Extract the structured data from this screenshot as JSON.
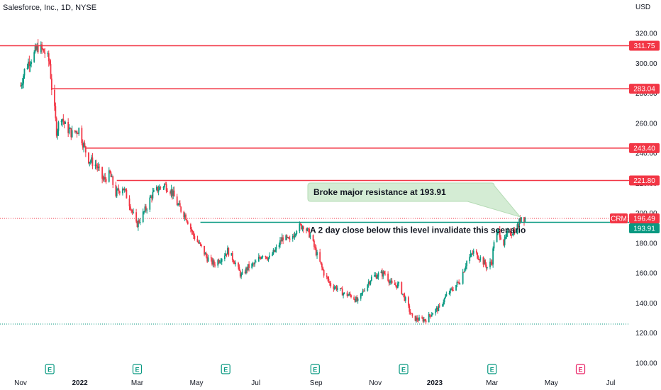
{
  "chart_data": {
    "type": "candlestick",
    "title": "Salesforce, Inc., 1D, NYSE",
    "currency": "USD",
    "symbol": "CRM",
    "last_price": 196.49,
    "ylim": [
      96,
      330
    ],
    "y_ticks": [
      100.0,
      120.0,
      140.0,
      160.0,
      180.0,
      200.0,
      220.0,
      240.0,
      260.0,
      280.0,
      300.0,
      320.0
    ],
    "x_ticks": [
      "Nov",
      "2022",
      "Mar",
      "May",
      "Jul",
      "Sep",
      "Nov",
      "2023",
      "Mar",
      "May",
      "Jul"
    ],
    "price_path": [
      [
        "2021-11-01",
        285
      ],
      [
        "2021-11-05",
        295
      ],
      [
        "2021-11-10",
        302
      ],
      [
        "2021-11-15",
        306
      ],
      [
        "2021-11-19",
        311
      ],
      [
        "2021-11-26",
        307
      ],
      [
        "2021-12-01",
        300
      ],
      [
        "2021-12-03",
        284
      ],
      [
        "2021-12-06",
        268
      ],
      [
        "2021-12-08",
        255
      ],
      [
        "2021-12-13",
        265
      ],
      [
        "2021-12-17",
        258
      ],
      [
        "2021-12-24",
        253
      ],
      [
        "2021-12-31",
        256
      ],
      [
        "2022-01-05",
        245
      ],
      [
        "2022-01-10",
        236
      ],
      [
        "2022-01-18",
        232
      ],
      [
        "2022-01-25",
        222
      ],
      [
        "2022-02-01",
        226
      ],
      [
        "2022-02-07",
        213
      ],
      [
        "2022-02-14",
        218
      ],
      [
        "2022-02-22",
        205
      ],
      [
        "2022-02-28",
        192
      ],
      [
        "2022-03-04",
        196
      ],
      [
        "2022-03-10",
        203
      ],
      [
        "2022-03-16",
        212
      ],
      [
        "2022-03-22",
        216
      ],
      [
        "2022-03-29",
        219
      ],
      [
        "2022-04-05",
        215
      ],
      [
        "2022-04-12",
        205
      ],
      [
        "2022-04-20",
        198
      ],
      [
        "2022-04-28",
        185
      ],
      [
        "2022-05-05",
        178
      ],
      [
        "2022-05-12",
        170
      ],
      [
        "2022-05-19",
        166
      ],
      [
        "2022-05-26",
        170
      ],
      [
        "2022-06-02",
        175
      ],
      [
        "2022-06-09",
        168
      ],
      [
        "2022-06-16",
        158
      ],
      [
        "2022-06-23",
        164
      ],
      [
        "2022-06-30",
        166
      ],
      [
        "2022-07-08",
        173
      ],
      [
        "2022-07-15",
        170
      ],
      [
        "2022-07-22",
        176
      ],
      [
        "2022-07-29",
        184
      ],
      [
        "2022-08-05",
        181
      ],
      [
        "2022-08-12",
        190
      ],
      [
        "2022-08-19",
        192
      ],
      [
        "2022-08-26",
        185
      ],
      [
        "2022-09-02",
        172
      ],
      [
        "2022-09-09",
        160
      ],
      [
        "2022-09-16",
        152
      ],
      [
        "2022-09-23",
        150
      ],
      [
        "2022-09-30",
        146
      ],
      [
        "2022-10-07",
        145
      ],
      [
        "2022-10-14",
        141
      ],
      [
        "2022-10-21",
        150
      ],
      [
        "2022-10-28",
        157
      ],
      [
        "2022-11-04",
        159
      ],
      [
        "2022-11-11",
        160
      ],
      [
        "2022-11-18",
        152
      ],
      [
        "2022-11-25",
        152
      ],
      [
        "2022-12-02",
        142
      ],
      [
        "2022-12-09",
        130
      ],
      [
        "2022-12-16",
        129
      ],
      [
        "2022-12-23",
        129
      ],
      [
        "2022-12-30",
        134
      ],
      [
        "2023-01-06",
        137
      ],
      [
        "2023-01-13",
        145
      ],
      [
        "2023-01-20",
        150
      ],
      [
        "2023-01-27",
        155
      ],
      [
        "2023-02-03",
        168
      ],
      [
        "2023-02-10",
        174
      ],
      [
        "2023-02-17",
        170
      ],
      [
        "2023-02-24",
        164
      ],
      [
        "2023-03-01",
        168
      ],
      [
        "2023-03-03",
        182
      ],
      [
        "2023-03-08",
        188
      ],
      [
        "2023-03-13",
        180
      ],
      [
        "2023-03-17",
        186
      ],
      [
        "2023-03-23",
        188
      ],
      [
        "2023-03-28",
        192
      ],
      [
        "2023-03-31",
        198
      ],
      [
        "2023-04-04",
        196.49
      ]
    ],
    "annotations": [
      {
        "text": "Broke major resistance at 193.91"
      },
      {
        "text": "A 2 day close below this level invalidate this scenario"
      }
    ],
    "horizontal_levels": [
      {
        "value": 311.75,
        "label": "311.75",
        "color": "#f23645",
        "from_date": "2021-10-01"
      },
      {
        "value": 283.04,
        "label": "283.04",
        "color": "#f23645",
        "from_date": "2021-12-03"
      },
      {
        "value": 243.4,
        "label": "243.40",
        "color": "#f23645",
        "from_date": "2022-01-07"
      },
      {
        "value": 221.8,
        "label": "221.80",
        "color": "#f23645",
        "from_date": "2022-02-08"
      },
      {
        "value": 193.91,
        "label": "193.91",
        "color": "#089981",
        "from_date": "2022-05-05"
      }
    ],
    "dotted_levels": [
      {
        "value": 196.49,
        "color": "#f23645",
        "from_date": "2021-10-01"
      },
      {
        "value": 126,
        "color": "#089981",
        "from_date": "2021-10-01"
      }
    ],
    "earnings_markers": [
      {
        "date": "2021-12-01",
        "label": "E",
        "color": "#089981"
      },
      {
        "date": "2022-03-01",
        "label": "E",
        "color": "#089981"
      },
      {
        "date": "2022-05-31",
        "label": "E",
        "color": "#089981"
      },
      {
        "date": "2022-08-31",
        "label": "E",
        "color": "#089981"
      },
      {
        "date": "2022-11-30",
        "label": "E",
        "color": "#089981"
      },
      {
        "date": "2023-03-01",
        "label": "E",
        "color": "#089981"
      },
      {
        "date": "2023-05-31",
        "label": "E",
        "color": "#e91e63"
      }
    ],
    "colors": {
      "up": "#089981",
      "down": "#f23645",
      "resistance": "#f23645",
      "support": "#089981",
      "callout_bg": "#d4ecd4"
    },
    "grid": false
  }
}
